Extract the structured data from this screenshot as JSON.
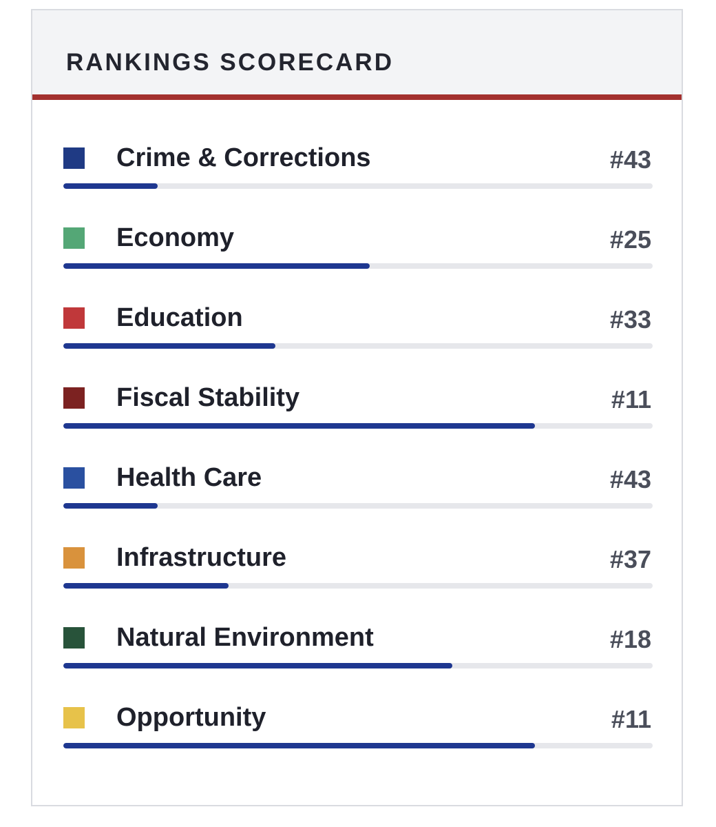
{
  "scorecard": {
    "title": "RANKINGS SCORECARD",
    "accent_color": "#a3312f",
    "bar_color": "#1e3790",
    "total_ranks": 50,
    "items": [
      {
        "label": "Crime & Corrections",
        "rank": "#43",
        "swatch_color": "#1f3a84",
        "progress": 0.16
      },
      {
        "label": "Economy",
        "rank": "#25",
        "swatch_color": "#54a776",
        "progress": 0.52
      },
      {
        "label": "Education",
        "rank": "#33",
        "swatch_color": "#c0383a",
        "progress": 0.36
      },
      {
        "label": "Fiscal Stability",
        "rank": "#11",
        "swatch_color": "#7c2221",
        "progress": 0.8
      },
      {
        "label": "Health Care",
        "rank": "#43",
        "swatch_color": "#2a50a0",
        "progress": 0.16
      },
      {
        "label": "Infrastructure",
        "rank": "#37",
        "swatch_color": "#d9923c",
        "progress": 0.28
      },
      {
        "label": "Natural Environment",
        "rank": "#18",
        "swatch_color": "#28533a",
        "progress": 0.66
      },
      {
        "label": "Opportunity",
        "rank": "#11",
        "swatch_color": "#e7c24a",
        "progress": 0.8
      }
    ]
  }
}
